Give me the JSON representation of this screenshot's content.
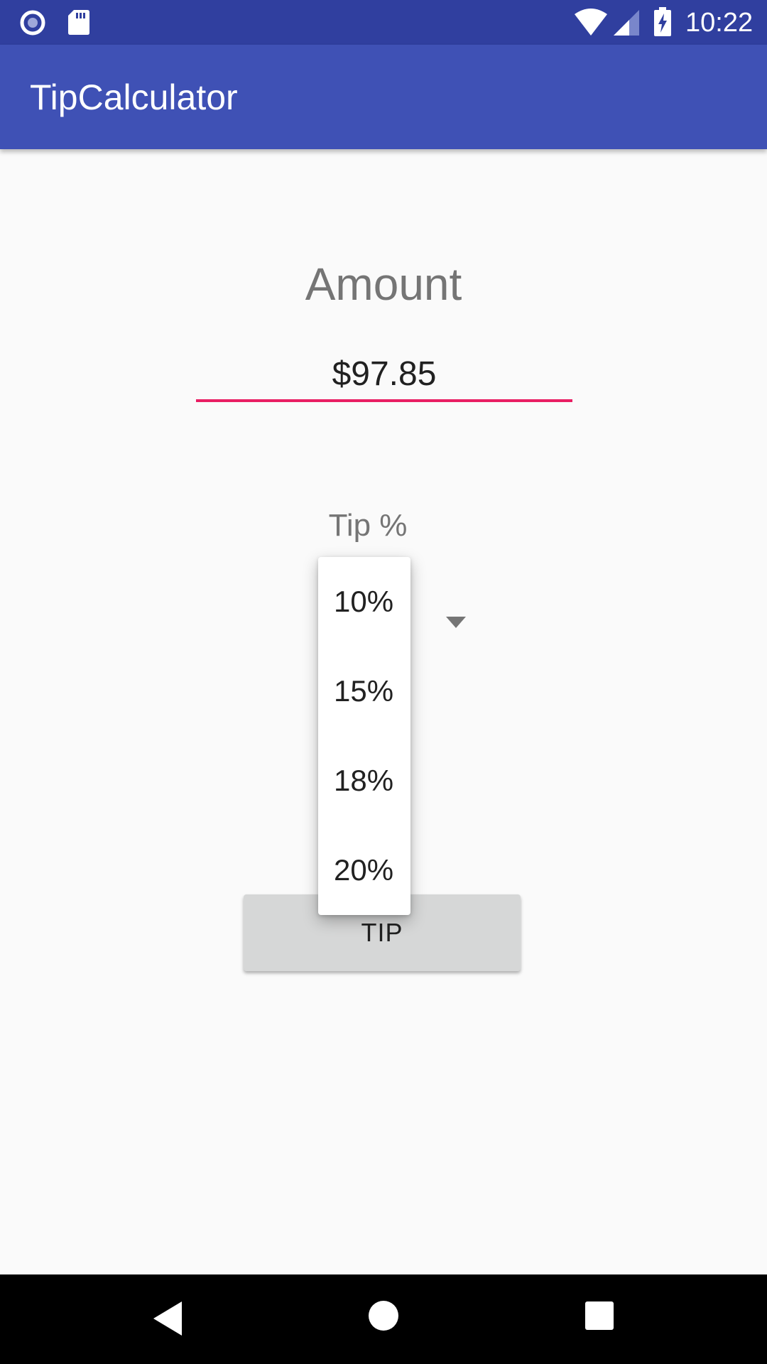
{
  "status_bar": {
    "time": "10:22",
    "icons": [
      "notification-circle-icon",
      "sd-card-icon",
      "wifi-icon",
      "cell-signal-icon",
      "battery-charging-icon"
    ]
  },
  "app_bar": {
    "title": "TipCalculator"
  },
  "form": {
    "amount_label": "Amount",
    "amount_value": "$97.85",
    "tip_label": "Tip %",
    "tip_button_label": "TIP"
  },
  "dropdown": {
    "options": [
      "10%",
      "15%",
      "18%",
      "20%"
    ]
  },
  "nav_bar": {
    "icons": [
      "back-icon",
      "home-icon",
      "recents-icon"
    ]
  },
  "colors": {
    "status_bar": "#303f9f",
    "primary": "#3f51b5",
    "accent": "#e91e63",
    "button": "#d6d7d7"
  }
}
